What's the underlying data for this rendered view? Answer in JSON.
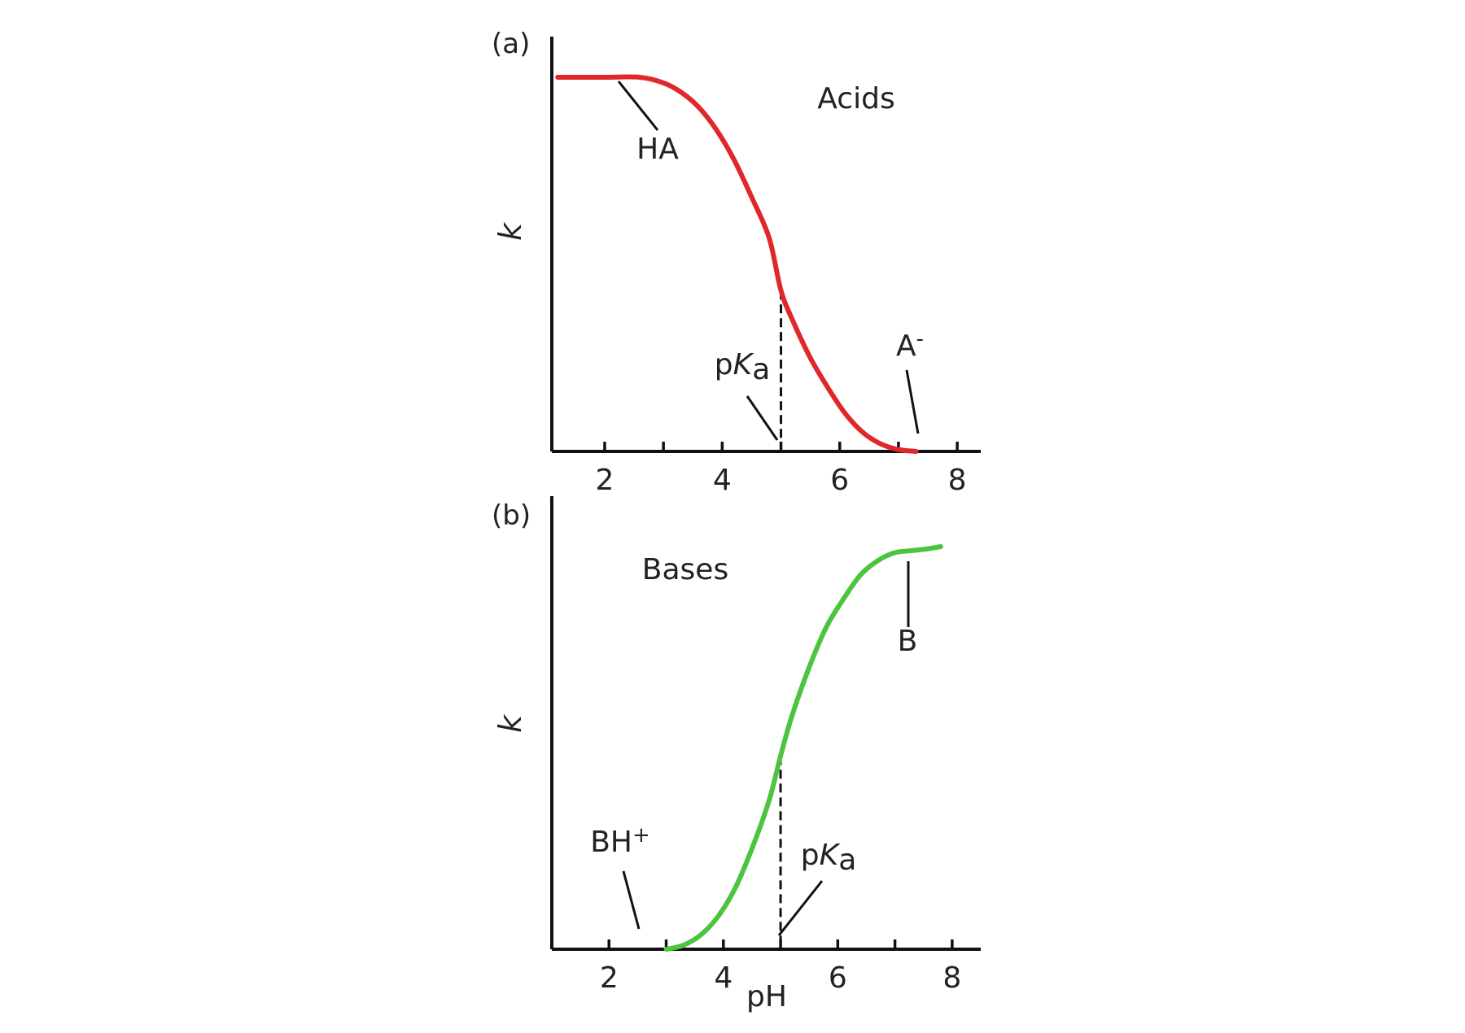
{
  "colors": {
    "acid_curve": "#e0272a",
    "base_curve": "#4dc43f",
    "axis": "#111111"
  },
  "chart_data": [
    {
      "type": "line",
      "panel_label": "(a)",
      "title": "Acids",
      "xlabel": "",
      "ylabel": "k",
      "xlim": [
        1.1,
        8.4
      ],
      "ylim": [
        0,
        1
      ],
      "xticks": [
        2,
        4,
        6,
        8
      ],
      "minor_xticks": [
        3,
        5,
        7
      ],
      "grid": false,
      "pka": 5.0,
      "pka_label": {
        "prefix": "p",
        "italic": "K",
        "sub": "a"
      },
      "series": [
        {
          "x": [
            1.2,
            2.0,
            2.6,
            3.0,
            3.3,
            3.6,
            3.9,
            4.2,
            4.5,
            4.8,
            5.0,
            5.2,
            5.5,
            5.8,
            6.1,
            6.4,
            6.7,
            7.0,
            7.3
          ],
          "y": [
            1.0,
            1.0,
            1.0,
            0.985,
            0.96,
            0.92,
            0.86,
            0.78,
            0.68,
            0.57,
            0.43,
            0.35,
            0.25,
            0.17,
            0.1,
            0.05,
            0.02,
            0.005,
            0.0
          ]
        }
      ],
      "annotations": [
        {
          "id": "HA",
          "text": "HA",
          "sup": "",
          "x": 2.1,
          "y": 1.0
        },
        {
          "id": "A",
          "text": "A",
          "sup": "-",
          "x": 7.25,
          "y": 0.0
        }
      ]
    },
    {
      "type": "line",
      "panel_label": "(b)",
      "title": "Bases",
      "xlabel": "pH",
      "ylabel": "k",
      "xlim": [
        1.0,
        8.5
      ],
      "ylim": [
        0,
        1
      ],
      "xticks": [
        2,
        4,
        6,
        8
      ],
      "minor_xticks": [
        3,
        5,
        7
      ],
      "grid": false,
      "pka": 5.0,
      "pka_label": {
        "prefix": "p",
        "italic": "K",
        "sub": "a"
      },
      "series": [
        {
          "x": [
            3.0,
            3.3,
            3.6,
            3.9,
            4.2,
            4.5,
            4.8,
            5.0,
            5.2,
            5.5,
            5.8,
            6.1,
            6.4,
            6.7,
            7.0,
            7.3,
            7.6,
            7.8
          ],
          "y": [
            0.0,
            0.01,
            0.035,
            0.08,
            0.15,
            0.25,
            0.37,
            0.48,
            0.58,
            0.7,
            0.8,
            0.87,
            0.93,
            0.965,
            0.985,
            0.99,
            0.995,
            1.0
          ]
        }
      ],
      "annotations": [
        {
          "id": "BH",
          "text": "BH",
          "sup": "+",
          "x": 3.0,
          "y": 0.0
        },
        {
          "id": "B",
          "text": "B",
          "sup": "",
          "x": 7.3,
          "y": 0.99
        }
      ]
    }
  ]
}
